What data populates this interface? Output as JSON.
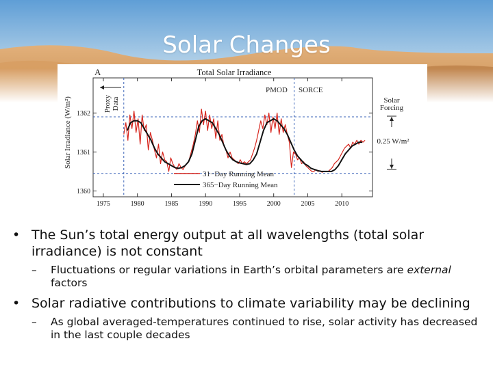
{
  "slide": {
    "title": "Solar Changes",
    "colors": {
      "sky_top": "#6fa8d8",
      "sand": "#d9a56c",
      "title": "#ffffff"
    }
  },
  "figure": {
    "panel_label": "A",
    "label_pmod": "PMOD",
    "label_sorce": "SORCE",
    "label_proxy_line1": "Proxy",
    "label_proxy_line2": "Data",
    "label_forcing_line1": "Solar",
    "label_forcing_line2": "Forcing",
    "label_forcing_value": "0.25 W/m²"
  },
  "chart_data": {
    "type": "line",
    "title": "Total Solar Irradiance",
    "xlabel": "",
    "ylabel": "Solar Irradiance (W/m²)",
    "xlim": [
      1973.5,
      2014.5
    ],
    "ylim": [
      1359.85,
      1362.9
    ],
    "x_ticks": [
      1975,
      1980,
      1985,
      1990,
      1995,
      2000,
      2005,
      2010
    ],
    "y_ticks": [
      1360,
      1361,
      1362
    ],
    "reference_lines_y": [
      1361.9,
      1360.45
    ],
    "reference_lines_x": [
      1978,
      2003
    ],
    "grid": false,
    "legend_position": "bottom-center",
    "colors": {
      "series_31": "#d7261e",
      "series_365": "#111111",
      "ref_lines": "#3b64b8"
    },
    "series": [
      {
        "name": "31−Day Running Mean",
        "x": [
          1978.0,
          1978.3,
          1978.6,
          1978.9,
          1979.2,
          1979.5,
          1979.8,
          1980.1,
          1980.4,
          1980.7,
          1981.0,
          1981.3,
          1981.6,
          1981.9,
          1982.2,
          1982.5,
          1982.8,
          1983.1,
          1983.4,
          1983.7,
          1984.0,
          1984.3,
          1984.6,
          1984.9,
          1985.2,
          1985.5,
          1985.8,
          1986.1,
          1986.4,
          1986.7,
          1987.0,
          1987.3,
          1987.6,
          1987.9,
          1988.2,
          1988.5,
          1988.8,
          1989.1,
          1989.4,
          1989.7,
          1990.0,
          1990.3,
          1990.6,
          1990.9,
          1991.2,
          1991.5,
          1991.8,
          1992.1,
          1992.4,
          1992.7,
          1993.0,
          1993.3,
          1993.6,
          1993.9,
          1994.2,
          1994.5,
          1994.8,
          1995.1,
          1995.4,
          1995.7,
          1996.0,
          1996.3,
          1996.6,
          1996.9,
          1997.2,
          1997.5,
          1997.8,
          1998.1,
          1998.4,
          1998.7,
          1999.0,
          1999.3,
          1999.6,
          1999.9,
          2000.2,
          2000.5,
          2000.8,
          2001.1,
          2001.4,
          2001.7,
          2002.0,
          2002.3,
          2002.6,
          2002.9,
          2003.2,
          2003.5,
          2003.8,
          2004.1,
          2004.4,
          2004.7,
          2005.0,
          2005.3,
          2005.6,
          2005.9,
          2006.2,
          2006.5,
          2006.8,
          2007.1,
          2007.4,
          2007.7,
          2008.0,
          2008.3,
          2008.6,
          2008.9,
          2009.2,
          2009.5,
          2009.8,
          2010.1,
          2010.4,
          2010.7,
          2011.0,
          2011.3,
          2011.6,
          2011.9,
          2012.2,
          2012.5,
          2012.8,
          2013.1,
          2013.4
        ],
        "values": [
          1361.45,
          1361.75,
          1361.3,
          1361.95,
          1361.6,
          1362.05,
          1361.5,
          1361.85,
          1361.2,
          1361.95,
          1361.55,
          1361.7,
          1361.05,
          1361.5,
          1361.3,
          1361.05,
          1360.85,
          1361.2,
          1360.7,
          1361.0,
          1360.8,
          1360.75,
          1360.5,
          1360.85,
          1360.7,
          1360.6,
          1360.55,
          1360.7,
          1360.6,
          1360.55,
          1360.65,
          1360.7,
          1360.8,
          1361.0,
          1361.2,
          1361.45,
          1361.8,
          1361.5,
          1362.1,
          1361.7,
          1362.05,
          1361.55,
          1361.95,
          1361.6,
          1361.85,
          1361.35,
          1361.8,
          1361.3,
          1361.45,
          1361.15,
          1361.05,
          1360.85,
          1361.0,
          1360.85,
          1360.8,
          1360.75,
          1360.7,
          1360.8,
          1360.7,
          1360.75,
          1360.7,
          1360.75,
          1360.8,
          1360.95,
          1361.1,
          1361.3,
          1361.55,
          1361.8,
          1361.6,
          1361.95,
          1361.7,
          1362.0,
          1361.5,
          1361.9,
          1361.6,
          1362.0,
          1361.45,
          1361.85,
          1361.5,
          1361.7,
          1361.45,
          1361.25,
          1360.6,
          1361.0,
          1360.95,
          1360.8,
          1360.85,
          1360.7,
          1360.75,
          1360.65,
          1360.6,
          1360.55,
          1360.5,
          1360.5,
          1360.55,
          1360.5,
          1360.52,
          1360.48,
          1360.5,
          1360.5,
          1360.5,
          1360.55,
          1360.6,
          1360.7,
          1360.75,
          1360.8,
          1360.9,
          1361.0,
          1361.1,
          1361.15,
          1361.2,
          1361.1,
          1361.25,
          1361.2,
          1361.3,
          1361.2,
          1361.3,
          1361.25,
          1361.3
        ]
      },
      {
        "name": "365−Day Running Mean",
        "x": [
          1978.5,
          1979.0,
          1979.5,
          1980.0,
          1980.5,
          1981.0,
          1981.5,
          1982.0,
          1982.5,
          1983.0,
          1983.5,
          1984.0,
          1984.5,
          1985.0,
          1985.5,
          1986.0,
          1986.5,
          1987.0,
          1987.5,
          1988.0,
          1988.5,
          1989.0,
          1989.5,
          1990.0,
          1990.5,
          1991.0,
          1991.5,
          1992.0,
          1992.5,
          1993.0,
          1993.5,
          1994.0,
          1994.5,
          1995.0,
          1995.5,
          1996.0,
          1996.5,
          1997.0,
          1997.5,
          1998.0,
          1998.5,
          1999.0,
          1999.5,
          2000.0,
          2000.5,
          2001.0,
          2001.5,
          2002.0,
          2002.5,
          2003.0,
          2003.5,
          2004.0,
          2004.5,
          2005.0,
          2005.5,
          2006.0,
          2006.5,
          2007.0,
          2007.5,
          2008.0,
          2008.5,
          2009.0,
          2009.5,
          2010.0,
          2010.5,
          2011.0,
          2011.5,
          2012.0,
          2012.5,
          2013.0
        ],
        "values": [
          1361.55,
          1361.75,
          1361.8,
          1361.8,
          1361.75,
          1361.6,
          1361.45,
          1361.3,
          1361.1,
          1360.95,
          1360.85,
          1360.75,
          1360.7,
          1360.65,
          1360.6,
          1360.58,
          1360.6,
          1360.65,
          1360.75,
          1360.95,
          1361.3,
          1361.65,
          1361.8,
          1361.85,
          1361.8,
          1361.75,
          1361.6,
          1361.45,
          1361.25,
          1361.05,
          1360.9,
          1360.8,
          1360.75,
          1360.72,
          1360.7,
          1360.68,
          1360.7,
          1360.8,
          1360.95,
          1361.25,
          1361.55,
          1361.75,
          1361.8,
          1361.85,
          1361.8,
          1361.7,
          1361.6,
          1361.45,
          1361.25,
          1361.05,
          1360.9,
          1360.8,
          1360.7,
          1360.65,
          1360.58,
          1360.55,
          1360.52,
          1360.5,
          1360.5,
          1360.5,
          1360.5,
          1360.55,
          1360.65,
          1360.8,
          1360.95,
          1361.05,
          1361.15,
          1361.2,
          1361.25,
          1361.25
        ]
      }
    ]
  },
  "bullets": [
    {
      "text": "The Sun’s total energy output at all wavelengths (total solar irradiance) is not constant",
      "sub": [
        {
          "before": "Fluctuations or regular variations in Earth’s orbital parameters are ",
          "em": "external",
          "after": " factors"
        }
      ]
    },
    {
      "text": "Solar radiative contributions to climate variability may be declining",
      "sub": [
        {
          "before": "As global averaged-temperatures continued to rise, solar activity has decreased in the last couple decades",
          "em": "",
          "after": ""
        }
      ]
    }
  ],
  "glyphs": {
    "bullet": "•",
    "dash": "–"
  }
}
